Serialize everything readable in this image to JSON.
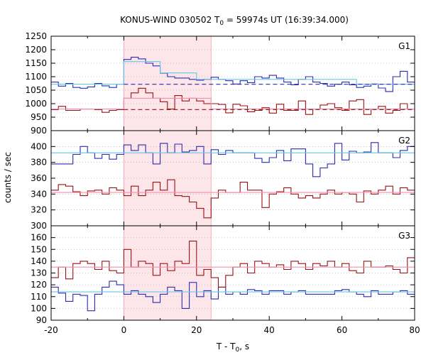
{
  "chart_data": {
    "type": "line",
    "title": "KONUS-WIND 030502 T",
    "title_sub": "0",
    "title_tail": " = 59974s UT (16:39:34.000)",
    "xlabel": "T - T",
    "xlabel_sub": "0",
    "xlabel_tail": ", s",
    "ylabel": "counts / sec",
    "xlim": [
      -20,
      80
    ],
    "xticks": [
      "-20",
      "0",
      "20",
      "40",
      "60",
      "80"
    ],
    "shaded_interval": [
      0,
      24
    ],
    "colors": {
      "blue": "#2b2bb0",
      "red": "#9b1010",
      "cyan": "#66c8e8",
      "pink": "#f28fb0",
      "shade": "#fde6ea"
    },
    "panels": [
      {
        "label": "G1",
        "ylim": [
          900,
          1250
        ],
        "yticks": [
          "900",
          "950",
          "1000",
          "1050",
          "1100",
          "1150",
          "1200",
          "1250"
        ],
        "series": [
          {
            "color": "blue",
            "x0": -20,
            "step": 2,
            "values": [
              1080,
              1065,
              1075,
              1060,
              1057,
              1062,
              1075,
              1066,
              1060,
              1072,
              1164,
              1172,
              1166,
              1150,
              1140,
              1113,
              1100,
              1095,
              1095,
              1090,
              1087,
              1090,
              1098,
              1090,
              1085,
              1073,
              1085,
              1078,
              1100,
              1095,
              1105,
              1095,
              1080,
              1070,
              1090,
              1100,
              1080,
              1075,
              1065,
              1072,
              1080,
              1070,
              1060,
              1065,
              1073,
              1058,
              1045,
              1100,
              1120,
              1080
            ]
          },
          {
            "color": "red",
            "x0": -20,
            "step": 2,
            "values": [
              978,
              990,
              975,
              975,
              980,
              980,
              978,
              968,
              975,
              978,
              1020,
              1040,
              1057,
              1040,
              1020,
              1007,
              980,
              1030,
              1010,
              1020,
              1010,
              1000,
              1000,
              997,
              966,
              998,
              992,
              970,
              975,
              985,
              965,
              998,
              975,
              975,
              1010,
              960,
              980,
              995,
              1000,
              985,
              975,
              1010,
              1015,
              960,
              980,
              990,
              965,
              975,
              1000,
              980
            ]
          },
          {
            "color": "cyan",
            "x0": -20,
            "step": 2,
            "values": [
              1072,
              1072,
              1072,
              1072,
              1072,
              1072,
              1072,
              1072,
              1072,
              1072,
              1156,
              1156,
              1156,
              1156,
              1156,
              1114,
              1114,
              1114,
              1114,
              1114,
              1090,
              1090,
              1090,
              1090,
              1090,
              1090,
              1090,
              1090,
              1090,
              1090,
              1090,
              1090,
              1090,
              1090,
              1090,
              1090,
              1090,
              1090,
              1090,
              1090,
              1090,
              1090,
              1072,
              1072,
              1072,
              1072,
              1072,
              1072,
              1072,
              1072
            ]
          },
          {
            "color": "pink",
            "x0": -20,
            "step": 2,
            "values": [
              980,
              980,
              980,
              980,
              980,
              980,
              980,
              980,
              980,
              980,
              1020,
              1020,
              1020,
              1020,
              1020,
              1020,
              1020,
              1020,
              1020,
              1020,
              1020,
              1020,
              980,
              980,
              980,
              980,
              980,
              980,
              980,
              980,
              980,
              980,
              980,
              980,
              980,
              980,
              980,
              980,
              980,
              980,
              980,
              980,
              980,
              980,
              980,
              980,
              980,
              980,
              980,
              980
            ]
          }
        ],
        "dashed": [
          {
            "color": "blue",
            "x": [
              0,
              80
            ],
            "y": 1072
          },
          {
            "color": "red",
            "x": [
              0,
              80
            ],
            "y": 978
          }
        ]
      },
      {
        "label": "G2",
        "ylim": [
          300,
          420
        ],
        "yticks": [
          "300",
          "320",
          "340",
          "360",
          "380",
          "400"
        ],
        "series": [
          {
            "color": "blue",
            "x0": -20,
            "step": 2,
            "values": [
              378,
              378,
              378,
              390,
              400,
              392,
              385,
              390,
              384,
              390,
              402,
              395,
              402,
              392,
              378,
              404,
              392,
              403,
              393,
              395,
              400,
              378,
              396,
              390,
              395,
              392,
              392,
              392,
              385,
              380,
              386,
              395,
              382,
              397,
              397,
              378,
              362,
              373,
              378,
              404,
              383,
              394,
              392,
              393,
              405,
              392,
              392,
              386,
              395,
              400
            ]
          },
          {
            "color": "red",
            "x0": -20,
            "step": 2,
            "values": [
              345,
              352,
              350,
              343,
              338,
              344,
              345,
              340,
              348,
              345,
              338,
              350,
              338,
              345,
              355,
              345,
              358,
              338,
              337,
              330,
              322,
              310,
              335,
              345,
              342,
              342,
              355,
              345,
              345,
              323,
              340,
              343,
              348,
              340,
              335,
              338,
              335,
              340,
              345,
              340,
              342,
              340,
              330,
              344,
              340,
              345,
              350,
              340,
              348,
              345
            ]
          },
          {
            "color": "cyan",
            "x0": -20,
            "step": 2,
            "values": [
              392,
              392,
              392,
              392,
              392,
              392,
              392,
              392,
              392,
              392,
              392,
              392,
              392,
              392,
              392,
              392,
              392,
              392,
              392,
              392,
              392,
              392,
              392,
              392,
              392,
              392,
              392,
              392,
              392,
              392,
              392,
              392,
              392,
              392,
              392,
              392,
              392,
              392,
              392,
              392,
              392,
              392,
              392,
              392,
              392,
              392,
              392,
              392,
              392,
              392
            ]
          },
          {
            "color": "pink",
            "x0": -20,
            "step": 2,
            "values": [
              342,
              342,
              342,
              342,
              342,
              342,
              342,
              342,
              342,
              342,
              342,
              342,
              342,
              342,
              342,
              342,
              342,
              342,
              342,
              342,
              342,
              342,
              342,
              342,
              342,
              342,
              342,
              342,
              342,
              342,
              342,
              342,
              342,
              342,
              342,
              342,
              342,
              342,
              342,
              342,
              342,
              342,
              342,
              342,
              342,
              342,
              342,
              342,
              342,
              342
            ]
          }
        ],
        "dashed": []
      },
      {
        "label": "G3",
        "ylim": [
          90,
          170
        ],
        "yticks": [
          "90",
          "100",
          "110",
          "120",
          "130",
          "140",
          "150",
          "160"
        ],
        "series": [
          {
            "color": "blue",
            "x0": -20,
            "step": 2,
            "values": [
              118,
              113,
              106,
              112,
              111,
              98,
              112,
              118,
              123,
              120,
              112,
              115,
              112,
              110,
              105,
              112,
              118,
              115,
              100,
              122,
              110,
              115,
              108,
              118,
              112,
              114,
              112,
              116,
              115,
              112,
              115,
              115,
              112,
              114,
              115,
              112,
              112,
              112,
              112,
              115,
              116,
              114,
              112,
              110,
              115,
              112,
              112,
              114,
              115,
              112
            ]
          },
          {
            "color": "red",
            "x0": -20,
            "step": 2,
            "values": [
              126,
              135,
              125,
              138,
              140,
              138,
              133,
              140,
              132,
              130,
              150,
              135,
              140,
              138,
              128,
              138,
              132,
              140,
              138,
              157,
              128,
              133,
              126,
              118,
              128,
              135,
              138,
              130,
              140,
              138,
              135,
              137,
              133,
              140,
              138,
              133,
              138,
              136,
              140,
              135,
              138,
              132,
              130,
              140,
              135,
              135,
              136,
              133,
              130,
              143
            ]
          },
          {
            "color": "cyan",
            "x0": -20,
            "step": 2,
            "values": [
              114,
              114,
              114,
              114,
              114,
              114,
              114,
              114,
              114,
              114,
              114,
              114,
              114,
              114,
              114,
              114,
              114,
              114,
              114,
              114,
              114,
              114,
              114,
              114,
              114,
              114,
              114,
              114,
              114,
              114,
              114,
              114,
              114,
              114,
              114,
              114,
              114,
              114,
              114,
              114,
              114,
              114,
              114,
              114,
              114,
              114,
              114,
              114,
              114,
              114
            ]
          },
          {
            "color": "pink",
            "x0": -20,
            "step": 2,
            "values": [
              135,
              135,
              135,
              135,
              135,
              135,
              135,
              135,
              135,
              135,
              135,
              135,
              135,
              135,
              135,
              135,
              135,
              135,
              135,
              135,
              135,
              135,
              135,
              135,
              135,
              135,
              135,
              135,
              135,
              135,
              135,
              135,
              135,
              135,
              135,
              135,
              135,
              135,
              135,
              135,
              135,
              135,
              135,
              135,
              135,
              135,
              135,
              135,
              135,
              135
            ]
          }
        ],
        "dashed": []
      }
    ]
  }
}
